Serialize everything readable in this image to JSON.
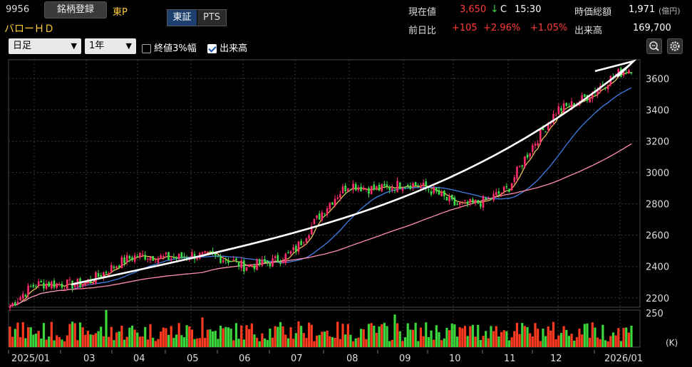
{
  "header": {
    "code": "9956",
    "register_button": "銘柄登録",
    "market": "東P",
    "company": "バローＨＤ",
    "exchange_tabs": [
      "東証",
      "PTS"
    ],
    "active_tab": "東証"
  },
  "quote": {
    "price_label": "現在値",
    "price": "3,650",
    "price_arrow": "↓",
    "price_flag": "C",
    "time": "15:30",
    "mcap_label": "時価総額",
    "mcap": "1,971",
    "mcap_unit": "(億円)",
    "change_label": "前日比",
    "change": "+105",
    "change_pct": "+2.96%",
    "change_pct2": "+1.05%",
    "volume_label": "出来高",
    "volume": "169,700"
  },
  "controls": {
    "period": "日足",
    "range": "1年",
    "check1_label": "終値3%幅",
    "check1": false,
    "check2_label": "出来高",
    "check2": true
  },
  "colors": {
    "up": "#ff2d6a",
    "down": "#3ddc4a",
    "ma_short": "#e8c15a",
    "ma_mid": "#3f7fe6",
    "ma_long": "#ff8fa8",
    "trend": "#ffffff",
    "vol_up": "#ff3b1f",
    "vol_down": "#3bd63b"
  },
  "chart_data": {
    "type": "candlestick",
    "x_ticks": [
      "2025/01",
      "03",
      "04",
      "05",
      "06",
      "07",
      "08",
      "09",
      "10",
      "11",
      "12",
      "2026/01"
    ],
    "y_ticks": [
      "3600",
      "3400",
      "3200",
      "3000",
      "2800",
      "2600",
      "2400",
      "2200"
    ],
    "ylim": [
      2140,
      3720
    ],
    "volume_ticks": [
      "250"
    ],
    "volume_unit": "(K)",
    "grid": true,
    "close_monthly": [
      2140,
      2250,
      2330,
      2440,
      2500,
      2380,
      2520,
      2920,
      2930,
      2800,
      2880,
      3420,
      3650
    ],
    "annotation": "white upward trend arrow"
  }
}
